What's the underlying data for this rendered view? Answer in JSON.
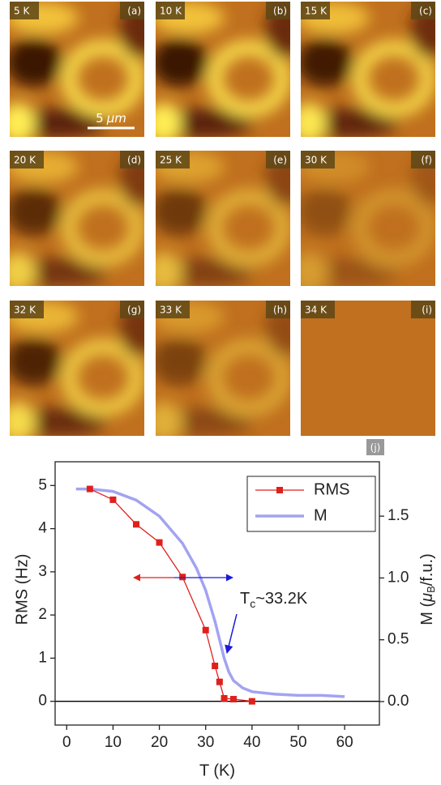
{
  "panels": [
    {
      "temperature": "5 K",
      "letter": "(a)"
    },
    {
      "temperature": "10 K",
      "letter": "(b)"
    },
    {
      "temperature": "15 K",
      "letter": "(c)"
    },
    {
      "temperature": "20 K",
      "letter": "(d)"
    },
    {
      "temperature": "25 K",
      "letter": "(e)"
    },
    {
      "temperature": "30 K",
      "letter": "(f)"
    },
    {
      "temperature": "32 K",
      "letter": "(g)"
    },
    {
      "temperature": "33 K",
      "letter": "(h)"
    },
    {
      "temperature": "34 K",
      "letter": "(i)"
    }
  ],
  "scale_bar": {
    "number": "5",
    "unit": "μm"
  },
  "chart_data": {
    "type": "line",
    "panel_label": "(j)",
    "x_label": "T (K)",
    "y_label": "RMS (Hz)",
    "y2_label": {
      "text": "M (",
      "symbol": "μ",
      "sub": "B",
      "rest": "/f.u.)"
    },
    "annotation": {
      "text": "T",
      "sub": "c",
      "rest": "~33.2K",
      "color": "#1a1adb"
    },
    "xlim": [
      -2.5,
      67.5
    ],
    "xticks": [
      0,
      10,
      20,
      30,
      40,
      50,
      60
    ],
    "ylim": [
      -0.55,
      5.55
    ],
    "yticks": [
      0,
      1,
      2,
      3,
      4,
      5
    ],
    "y2lim": [
      -0.19,
      1.94
    ],
    "y2ticks": [
      {
        "value": 0,
        "label": "0.0"
      },
      0.5,
      {
        "value": 1,
        "label": "1.0"
      },
      1.5
    ],
    "legend": "top-right",
    "series": [
      {
        "name": "RMS",
        "color": "#e0201b",
        "markers": true,
        "x": [
          5,
          10,
          15,
          20,
          25,
          30,
          32,
          33,
          34,
          36,
          40
        ],
        "values": [
          4.92,
          4.67,
          4.1,
          3.68,
          2.88,
          1.65,
          0.82,
          0.45,
          0.07,
          0.05,
          0.0
        ]
      },
      {
        "name": "M",
        "color": "#a3a3f2",
        "markers": false,
        "axis": "y2",
        "x": [
          2,
          5,
          10,
          15,
          20,
          25,
          28,
          30,
          32,
          33,
          34,
          35,
          36,
          38,
          40,
          45,
          50,
          55,
          60
        ],
        "values": [
          1.72,
          1.72,
          1.7,
          1.63,
          1.5,
          1.28,
          1.08,
          0.9,
          0.65,
          0.5,
          0.35,
          0.24,
          0.17,
          0.11,
          0.08,
          0.06,
          0.05,
          0.05,
          0.04
        ]
      }
    ]
  }
}
